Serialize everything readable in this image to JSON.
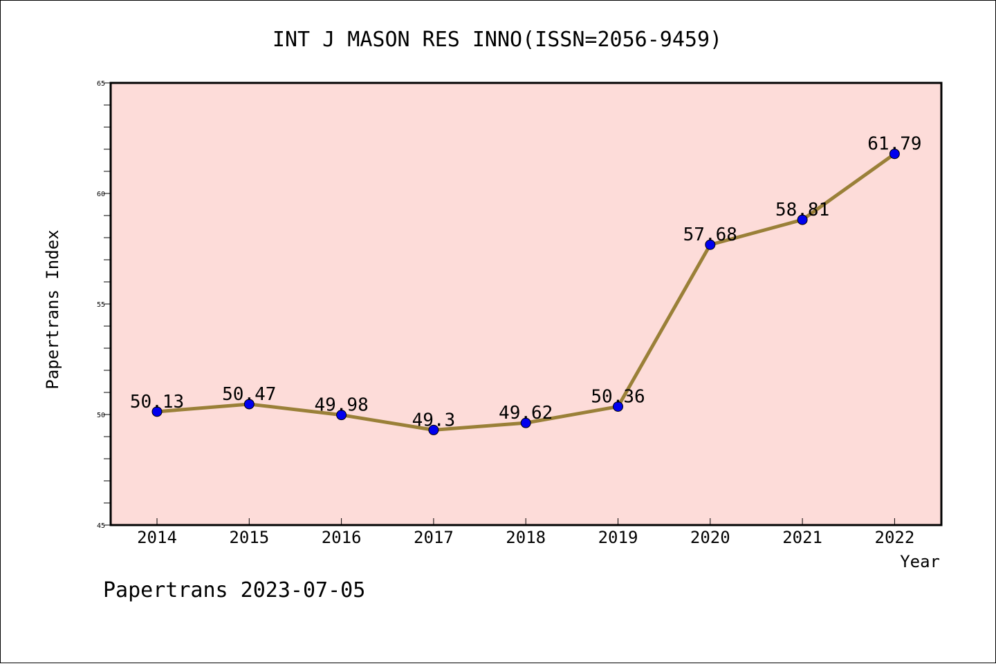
{
  "chart_data": {
    "type": "line",
    "title": "INT J MASON RES INNO(ISSN=2056-9459)",
    "xlabel": "Year",
    "ylabel": "Papertrans Index",
    "categories": [
      "2014",
      "2015",
      "2016",
      "2017",
      "2018",
      "2019",
      "2020",
      "2021",
      "2022"
    ],
    "values": [
      50.13,
      50.47,
      49.98,
      49.3,
      49.62,
      50.36,
      57.68,
      58.81,
      61.79
    ],
    "value_labels": [
      "50.13",
      "50.47",
      "49.98",
      "49.3",
      "49.62",
      "50.36",
      "57.68",
      "58.81",
      "61.79"
    ],
    "ylim": [
      45,
      65
    ],
    "yticks": [
      "45",
      "50",
      "55",
      "60",
      "65"
    ],
    "grid": false,
    "legend": "none",
    "colors": {
      "plot_background": "#fddcd9",
      "line": "#9a8038",
      "marker": "#0000ee",
      "frame": "#000000"
    }
  },
  "footer": {
    "text": "Papertrans 2023-07-05"
  }
}
